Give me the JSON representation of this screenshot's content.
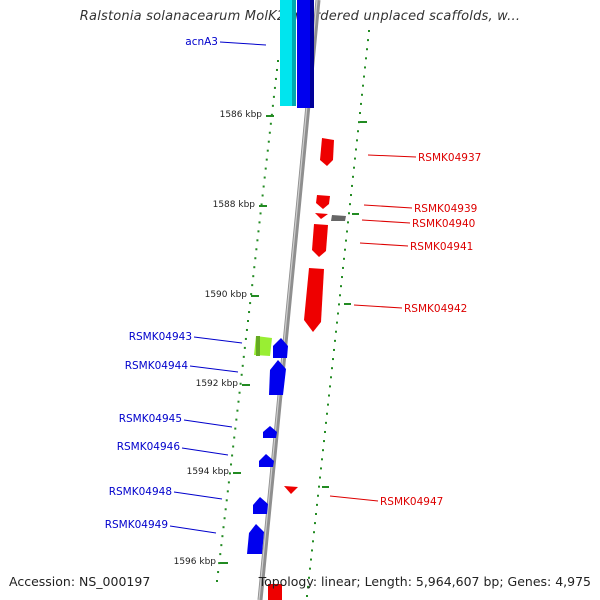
{
  "title": "Ralstonia solanacearum MolK2 unordered unplaced scaffolds, w...",
  "footer": {
    "accession": "Accession: NS_000197",
    "summary": "Topology: linear; Length: 5,964,607 bp; Genes: 4,975"
  },
  "kbp_markers": [
    "1586 kbp",
    "1588 kbp",
    "1590 kbp",
    "1592 kbp",
    "1594 kbp",
    "1596 kbp"
  ],
  "colors": {
    "forward_strand": "#0000ee",
    "reverse_strand": "#ee0000",
    "highlight_cyan": "#00e5ee",
    "highlight_green": "#99ee33",
    "backbone": "#888888",
    "tick": "#228b22"
  },
  "genes_left": [
    {
      "name": "acnA3",
      "color": "#0000cc"
    },
    {
      "name": "RSMK04943",
      "color": "#0000cc"
    },
    {
      "name": "RSMK04944",
      "color": "#0000cc"
    },
    {
      "name": "RSMK04945",
      "color": "#0000cc"
    },
    {
      "name": "RSMK04946",
      "color": "#0000cc"
    },
    {
      "name": "RSMK04948",
      "color": "#0000cc"
    },
    {
      "name": "RSMK04949",
      "color": "#0000cc"
    }
  ],
  "genes_right": [
    {
      "name": "RSMK04937",
      "color": "#dd0000"
    },
    {
      "name": "RSMK04939",
      "color": "#dd0000"
    },
    {
      "name": "RSMK04940",
      "color": "#dd0000"
    },
    {
      "name": "RSMK04941",
      "color": "#dd0000"
    },
    {
      "name": "RSMK04942",
      "color": "#dd0000"
    },
    {
      "name": "RSMK04947",
      "color": "#dd0000"
    }
  ]
}
